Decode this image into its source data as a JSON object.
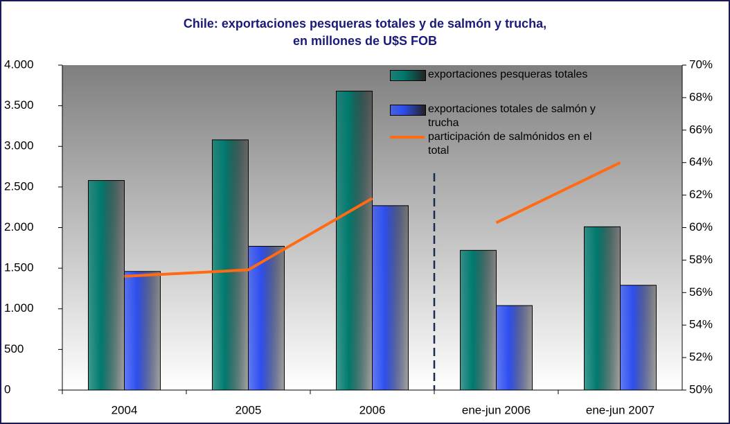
{
  "chart_data": {
    "type": "bar",
    "title": "Chile: exportaciones pesqueras totales y de salmón y trucha,",
    "subtitle": "en millones de U$S FOB",
    "categories": [
      "2004",
      "2005",
      "2006",
      "ene-jun 2006",
      "ene-jun 2007"
    ],
    "series": [
      {
        "name": "exportaciones pesqueras totales",
        "color": "#007a6e",
        "values": [
          2580,
          3080,
          3680,
          1720,
          2010
        ]
      },
      {
        "name": "exportaciones totales de salmón y trucha",
        "color": "#2e4ff0",
        "values": [
          1460,
          1770,
          2270,
          1040,
          1290
        ]
      },
      {
        "name": "participación de salmónidos en el total",
        "color": "#ff6a13",
        "type": "line",
        "axis": "y2",
        "values": [
          57.0,
          57.4,
          61.8,
          60.3,
          64.0
        ]
      }
    ],
    "ylim": [
      0,
      4000
    ],
    "yticks": [
      0,
      500,
      {
        "value": 1000,
        "label": "1.000"
      },
      {
        "value": 1500,
        "label": "1.500"
      },
      {
        "value": 2000,
        "label": "2.000"
      },
      {
        "value": 2500,
        "label": "2.500"
      },
      {
        "value": 3000,
        "label": "3.000"
      },
      {
        "value": 3500,
        "label": "3.500"
      },
      {
        "value": 4000,
        "label": "4.000"
      }
    ],
    "y2lim": [
      50,
      70
    ],
    "y2ticks": [
      {
        "value": 50,
        "label": "50%"
      },
      {
        "value": 52,
        "label": "52%"
      },
      {
        "value": 54,
        "label": "54%"
      },
      {
        "value": 56,
        "label": "56%"
      },
      {
        "value": 58,
        "label": "58%"
      },
      {
        "value": 60,
        "label": "60%"
      },
      {
        "value": 62,
        "label": "62%"
      },
      {
        "value": 64,
        "label": "64%"
      },
      {
        "value": 66,
        "label": "66%"
      },
      {
        "value": 68,
        "label": "68%"
      },
      {
        "value": 70,
        "label": "70%"
      }
    ],
    "divider_after": 2,
    "legend": "top-right"
  }
}
